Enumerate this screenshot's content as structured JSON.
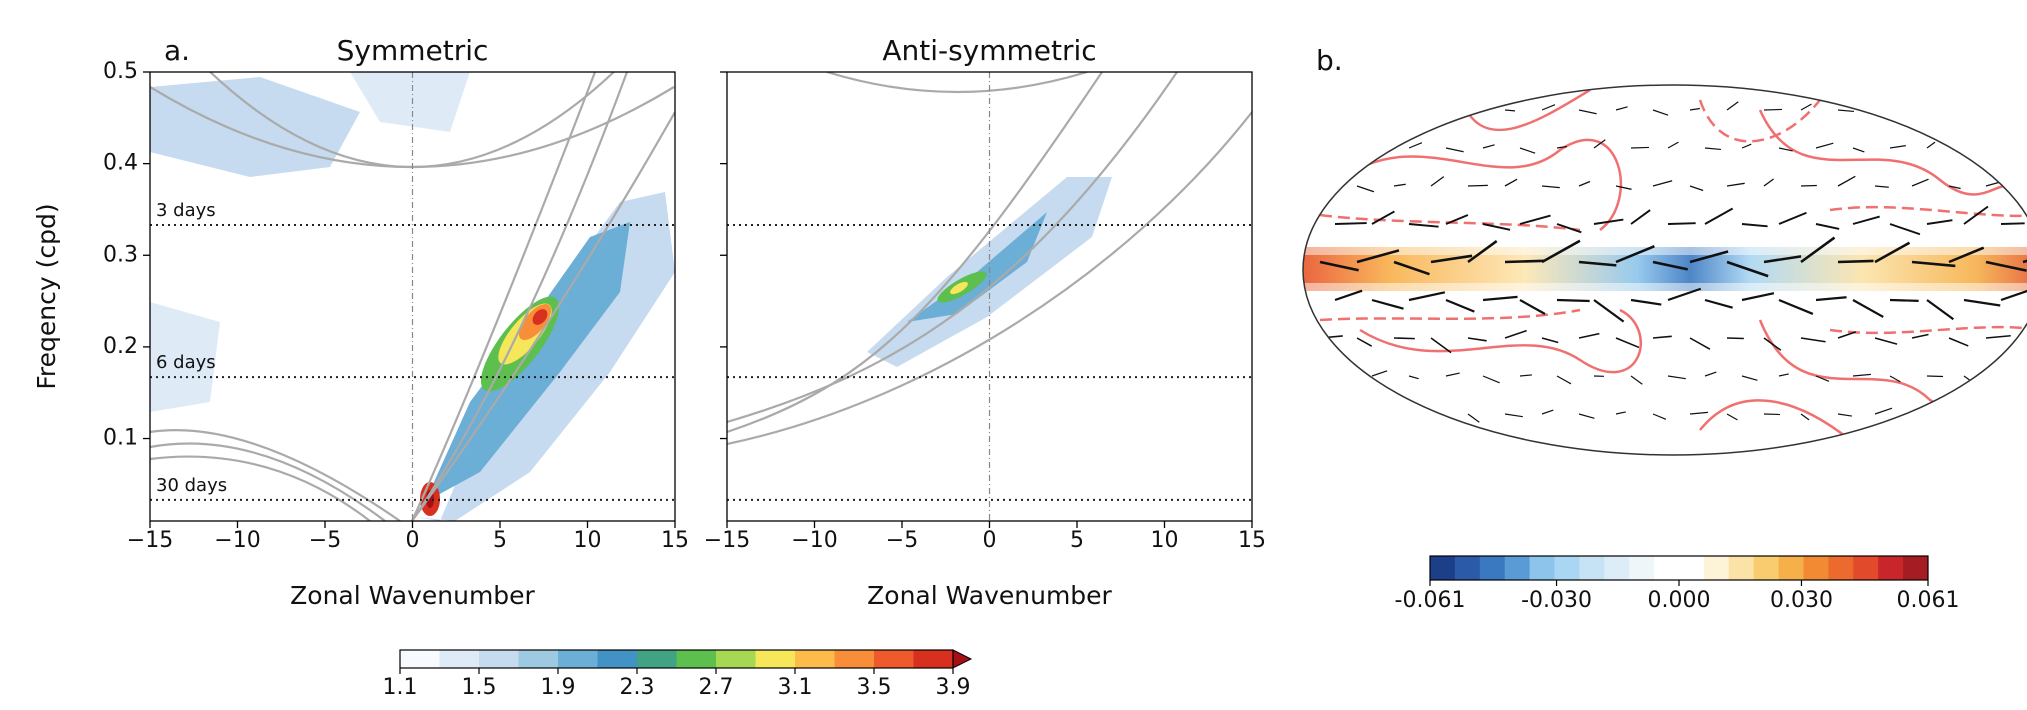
{
  "chart_data": [
    {
      "type": "contour",
      "title": "Symmetric",
      "xlabel": "Zonal Wavenumber",
      "ylabel": "Freqency (cpd)",
      "xlim": [
        -15,
        15
      ],
      "xticks": [
        {
          "value": -15,
          "label": "−15"
        },
        {
          "value": -10,
          "label": "−10"
        },
        {
          "value": -5,
          "label": "−5"
        },
        0,
        5,
        10,
        15
      ],
      "ylim": [
        0.01,
        0.5
      ],
      "yticks": [
        0.1,
        0.2,
        0.3,
        0.4,
        0.5
      ],
      "period_lines": [
        {
          "value": 0.333,
          "label": "3 days"
        },
        {
          "value": 0.167,
          "label": "6 days"
        },
        {
          "value": 0.033,
          "label": "30 days"
        }
      ]
    },
    {
      "type": "contour",
      "title": "Anti-symmetric",
      "xlabel": "Zonal Wavenumber",
      "xlim": [
        -15,
        15
      ],
      "xticks": [
        {
          "value": -15,
          "label": "−15"
        },
        {
          "value": -10,
          "label": "−10"
        },
        {
          "value": -5,
          "label": "−5"
        },
        0,
        5,
        10,
        15
      ],
      "ylim": [
        0.01,
        0.5
      ],
      "yticks": [
        0.1,
        0.2,
        0.3,
        0.4,
        0.5
      ],
      "period_lines": [
        {
          "value": 0.333
        },
        {
          "value": 0.167
        },
        {
          "value": 0.033
        }
      ]
    }
  ],
  "panel_labels": [
    "a.",
    "b."
  ],
  "colorbar_a": {
    "lim": [
      1.1,
      3.9
    ],
    "ticks": [
      1.1,
      1.5,
      1.9,
      2.3,
      2.7,
      3.1,
      3.5,
      3.9
    ],
    "colors": [
      "#f7fbff",
      "#deebf7",
      "#c6dbef",
      "#9ecae1",
      "#6baed6",
      "#4292c6",
      "#41a383",
      "#5cbf4e",
      "#a6d854",
      "#f6e65a",
      "#fdbb4a",
      "#f98e3a",
      "#ee5a2c",
      "#d7301f"
    ],
    "extend_color": "#a50f15"
  },
  "colorbar_b": {
    "lim": [
      -0.061,
      0.061
    ],
    "ticks": [
      -0.061,
      {
        "value": -0.03,
        "label": "-0.030"
      },
      {
        "value": 0,
        "label": "0.000"
      },
      {
        "value": 0.03,
        "label": "0.030"
      },
      0.061
    ],
    "colors": [
      "#1d3f8a",
      "#2b5aa8",
      "#3a78c0",
      "#5a9bd5",
      "#8cc4ec",
      "#a9d6f3",
      "#c6e3f5",
      "#dcedf7",
      "#eef6fa",
      "#ffffff",
      "#ffffff",
      "#fdf3d6",
      "#fbe3a8",
      "#f8cc6f",
      "#f6b04a",
      "#f28a34",
      "#ec6a2e",
      "#e14a2a",
      "#c8262a",
      "#a51c22"
    ]
  }
}
